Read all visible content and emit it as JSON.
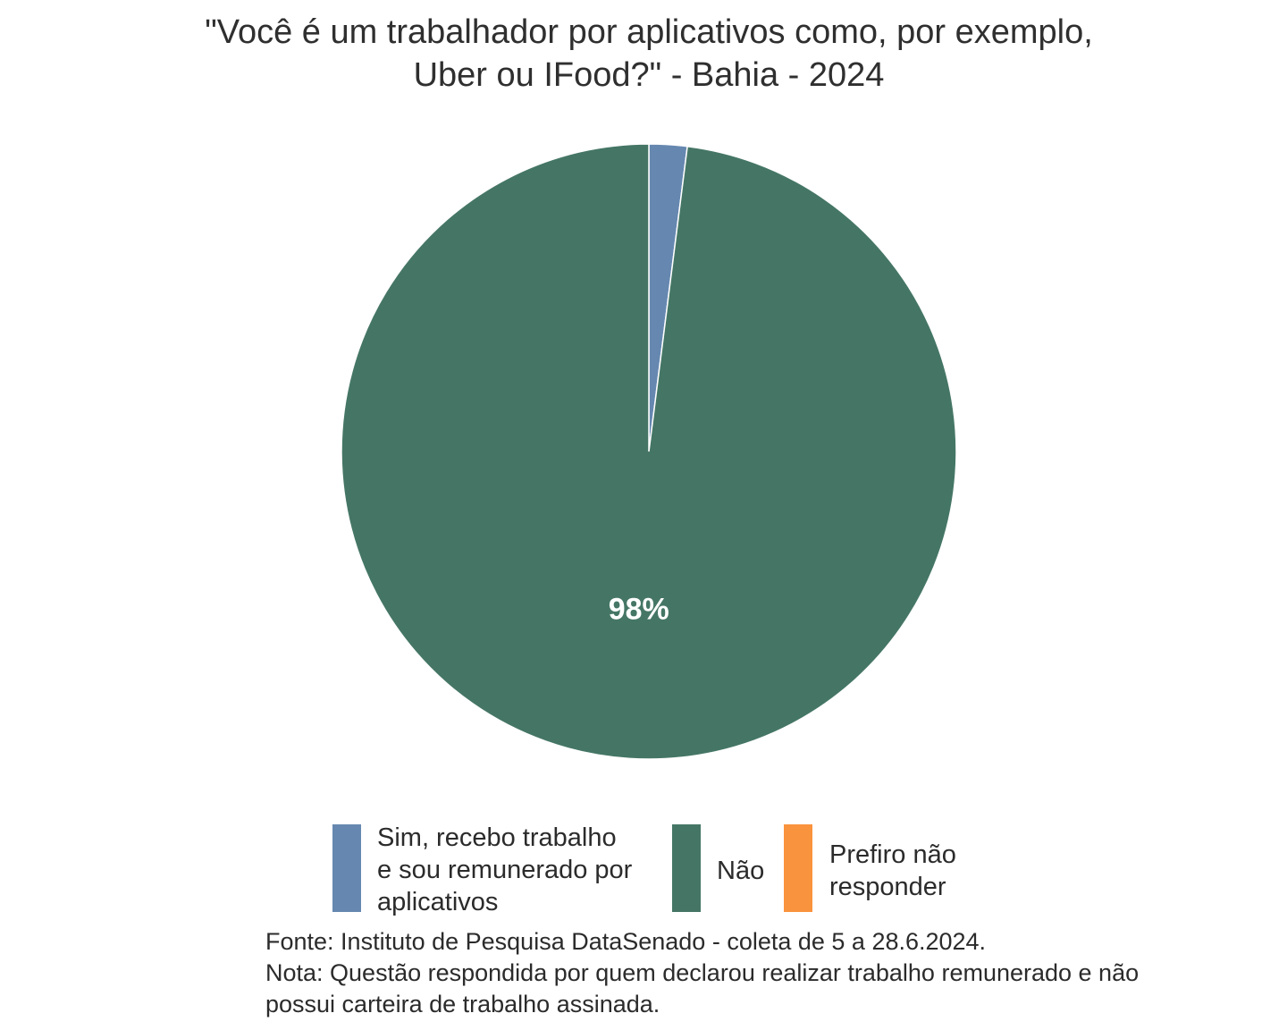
{
  "chart_data": {
    "type": "pie",
    "title_lines": [
      "\"Você é um trabalhador por aplicativos como, por exemplo,",
      "Uber ou IFood?\" - Bahia - 2024"
    ],
    "slices": [
      {
        "label_lines": [
          "Sim, recebo trabalho",
          "e sou remunerado por",
          "aplicativos"
        ],
        "value": 2,
        "color": "#6688b0",
        "data_label": ""
      },
      {
        "label_lines": [
          "Não"
        ],
        "value": 98,
        "color": "#457665",
        "data_label": "98%"
      },
      {
        "label_lines": [
          "Prefiro não",
          "responder"
        ],
        "value": 0,
        "color": "#fa933d",
        "data_label": ""
      }
    ],
    "legend_position": "bottom",
    "caption_lines": [
      "Fonte: Instituto de Pesquisa DataSenado - coleta de 5 a 28.6.2024.",
      "Nota: Questão respondida por quem declarou realizar trabalho remunerado e não",
      "possui carteira de trabalho assinada."
    ]
  }
}
